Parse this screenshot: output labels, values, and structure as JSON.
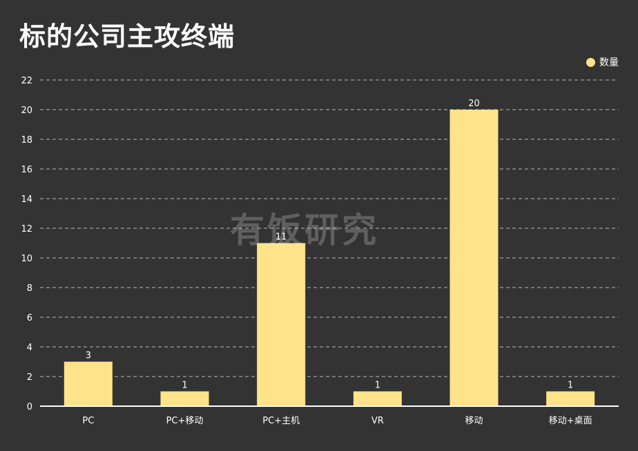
{
  "page": {
    "title": "标的公司主攻终端",
    "watermark": "有饭研究"
  },
  "colors": {
    "background": "#333333",
    "bar": "#FFE38A",
    "grid": "#BBBBBB",
    "axis": "#FFFFFF"
  },
  "chart_data": {
    "type": "bar",
    "title": "标的公司主攻终端",
    "xlabel": "",
    "ylabel": "",
    "categories": [
      "PC",
      "PC+移动",
      "PC+主机",
      "VR",
      "移动",
      "移动+桌面"
    ],
    "series": [
      {
        "name": "数量",
        "values": [
          3,
          1,
          11,
          1,
          20,
          1
        ]
      }
    ],
    "ylim": [
      0,
      22
    ],
    "yticks": [
      0,
      2,
      4,
      6,
      8,
      10,
      12,
      14,
      16,
      18,
      20,
      22
    ],
    "grid": true,
    "grid_style": "dashed",
    "legend_position": "top-right",
    "data_labels": true
  }
}
